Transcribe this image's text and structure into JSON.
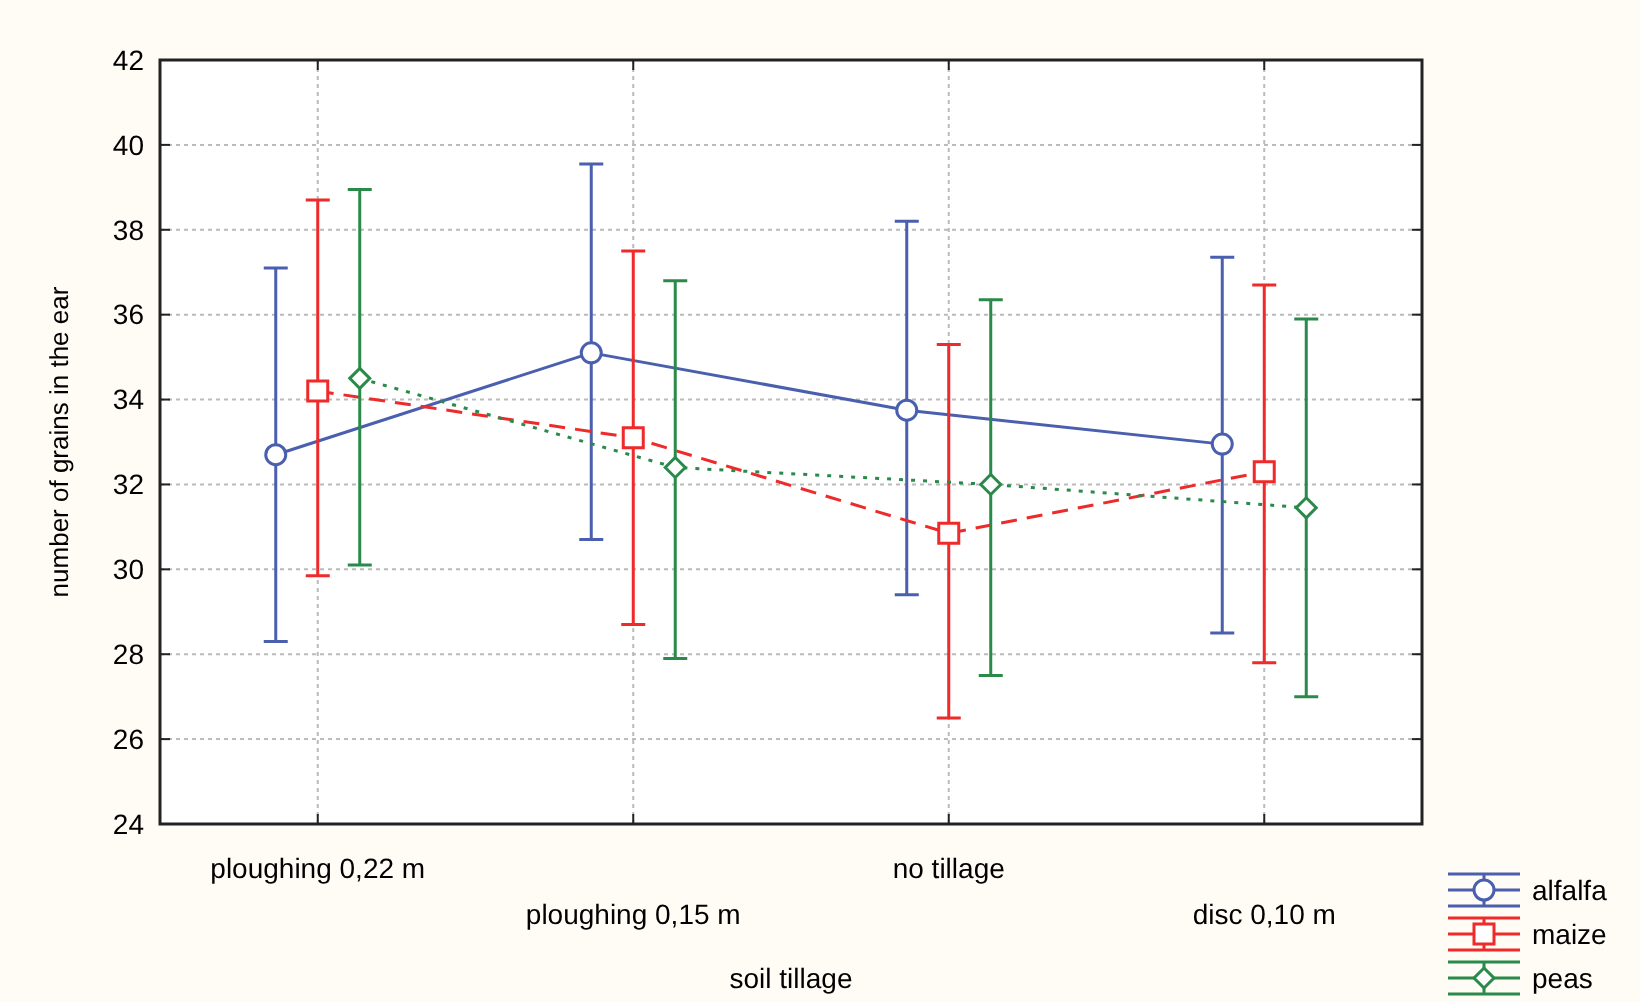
{
  "chart_data": {
    "type": "line",
    "xlabel": "soil tillage",
    "ylabel": "number of grains in the ear",
    "categories": [
      "ploughing 0,22 m",
      "ploughing 0,15 m",
      "no tillage",
      "disc 0,10 m"
    ],
    "series": [
      {
        "name": "alfalfa",
        "color": "#4a5fae",
        "marker": "circle",
        "line_style": "solid",
        "values": [
          32.7,
          35.1,
          33.75,
          32.95
        ],
        "errors": [
          [
            28.3,
            37.1
          ],
          [
            30.7,
            39.55
          ],
          [
            29.4,
            38.2
          ],
          [
            28.5,
            37.35
          ]
        ]
      },
      {
        "name": "maize",
        "color": "#ee2a2a",
        "marker": "square",
        "line_style": "dashed",
        "values": [
          34.2,
          33.1,
          30.85,
          32.3
        ],
        "errors": [
          [
            29.85,
            38.7
          ],
          [
            28.7,
            37.5
          ],
          [
            26.5,
            35.3
          ],
          [
            27.8,
            36.7
          ]
        ]
      },
      {
        "name": "peas",
        "color": "#2a8a4a",
        "marker": "diamond",
        "line_style": "dotted",
        "values": [
          34.5,
          32.4,
          32.0,
          31.45
        ],
        "errors": [
          [
            30.1,
            38.95
          ],
          [
            27.9,
            36.8
          ],
          [
            27.5,
            36.35
          ],
          [
            27.0,
            35.9
          ]
        ]
      }
    ],
    "ylim": [
      24,
      42
    ],
    "yticks": [
      24,
      26,
      28,
      30,
      32,
      34,
      36,
      38,
      40,
      42
    ],
    "grid": true,
    "legend": "bottom right"
  }
}
